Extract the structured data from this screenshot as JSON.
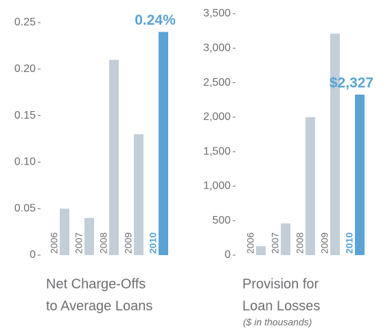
{
  "chart_data": [
    {
      "type": "bar",
      "title": [
        "Net Charge-Offs",
        "to Average Loans"
      ],
      "categories": [
        "2006",
        "2007",
        "2008",
        "2009",
        "2010"
      ],
      "values": [
        0.05,
        0.04,
        0.21,
        0.13,
        0.24
      ],
      "value_labels": [
        null,
        null,
        null,
        null,
        "0.24%"
      ],
      "colors": [
        "#c3ced8",
        "#c3ced8",
        "#c3ced8",
        "#c3ced8",
        "#5ba3d4"
      ],
      "ylim": [
        0,
        0.25
      ],
      "yticks": [
        0,
        {
          "value": 0.05,
          "label": "0.05"
        },
        {
          "value": 0.1,
          "label": "0.10"
        },
        {
          "value": 0.15,
          "label": "0.15"
        },
        {
          "value": 0.2,
          "label": "0.20"
        },
        {
          "value": 0.25,
          "label": "0.25"
        }
      ]
    },
    {
      "type": "bar",
      "title": [
        "Provision for",
        "Loan Losses"
      ],
      "subtitle": "($ in thousands)",
      "categories": [
        "2006",
        "2007",
        "2008",
        "2009",
        "2010"
      ],
      "values": [
        130,
        460,
        2000,
        3210,
        2327
      ],
      "value_labels": [
        null,
        null,
        null,
        null,
        "$2,327"
      ],
      "colors": [
        "#c3ced8",
        "#c3ced8",
        "#c3ced8",
        "#c3ced8",
        "#5ba3d4"
      ],
      "ylim": [
        0,
        3500
      ],
      "yticks": [
        0,
        500,
        {
          "value": 1000,
          "label": "1,000"
        },
        {
          "value": 1500,
          "label": "1,500"
        },
        {
          "value": 2000,
          "label": "2,000"
        },
        {
          "value": 2500,
          "label": "2,500"
        },
        {
          "value": 3000,
          "label": "3,000"
        },
        {
          "value": 3500,
          "label": "3,500"
        }
      ]
    }
  ]
}
